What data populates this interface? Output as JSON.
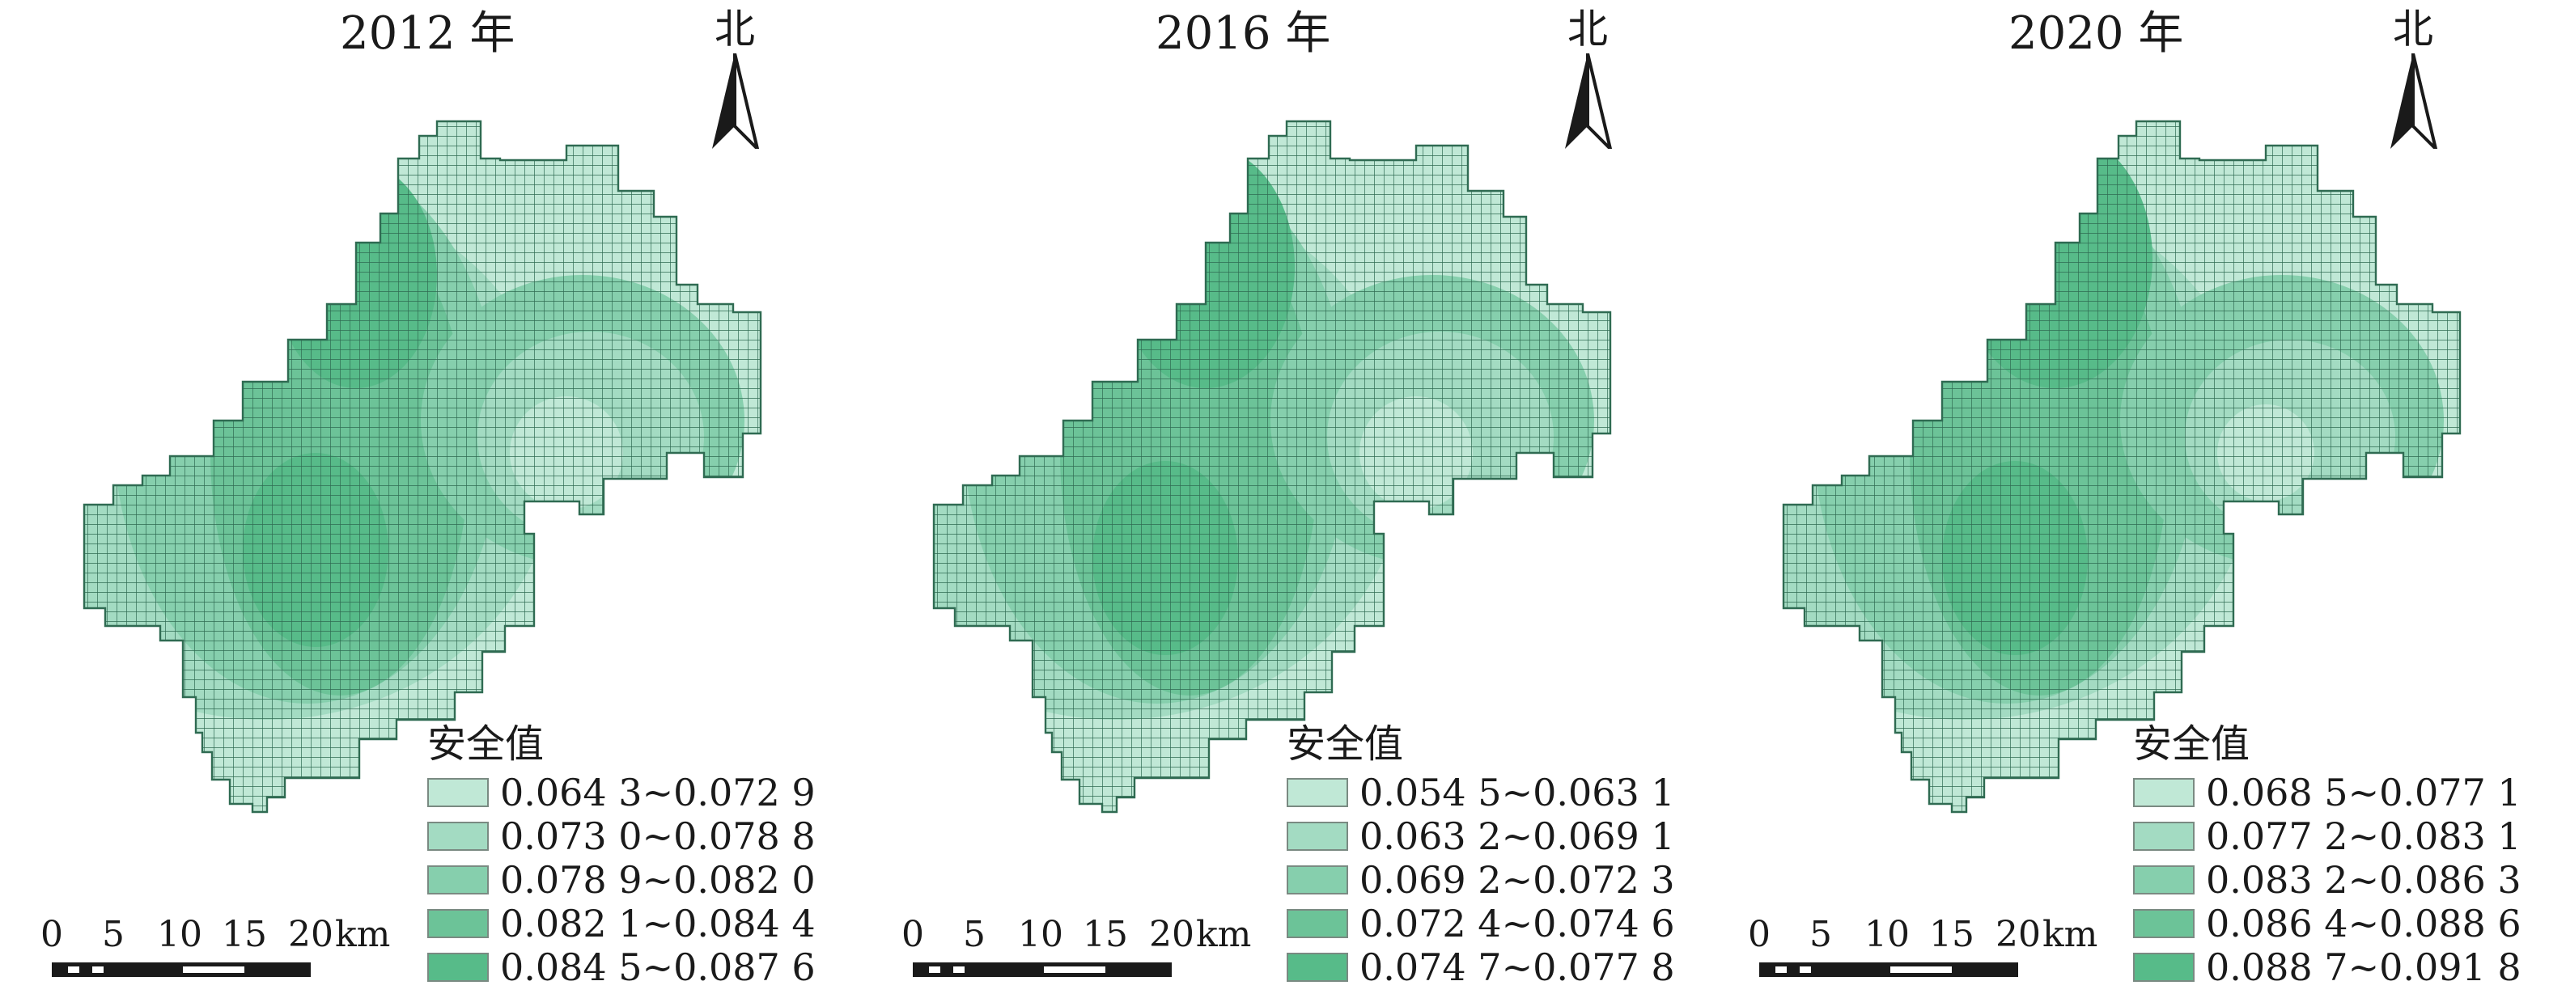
{
  "colors": {
    "class_fill": [
      "#c0e8d6",
      "#a3dbc2",
      "#86cfad",
      "#6cc398",
      "#57bb89"
    ],
    "grid_line": "#2f6b52",
    "frame": "#7a8a82"
  },
  "legend_title": "安全值",
  "north_label": "北",
  "scale": {
    "ticks": [
      "0",
      "5",
      "10",
      "15",
      "20"
    ],
    "unit": "km"
  },
  "maps": [
    {
      "title": "2012 年",
      "legend": [
        "0.064 3~0.072 9",
        "0.073 0~0.078 8",
        "0.078 9~0.082 0",
        "0.082 1~0.084 4",
        "0.084 5~0.087 6"
      ]
    },
    {
      "title": "2016 年",
      "legend": [
        "0.054 5~0.063 1",
        "0.063 2~0.069 1",
        "0.069 2~0.072 3",
        "0.072 4~0.074 6",
        "0.074 7~0.077 8"
      ]
    },
    {
      "title": "2020 年",
      "legend": [
        "0.068 5~0.077 1",
        "0.077 2~0.083 1",
        "0.083 2~0.086 3",
        "0.086 4~0.088 6",
        "0.088 7~0.091 8"
      ]
    }
  ]
}
